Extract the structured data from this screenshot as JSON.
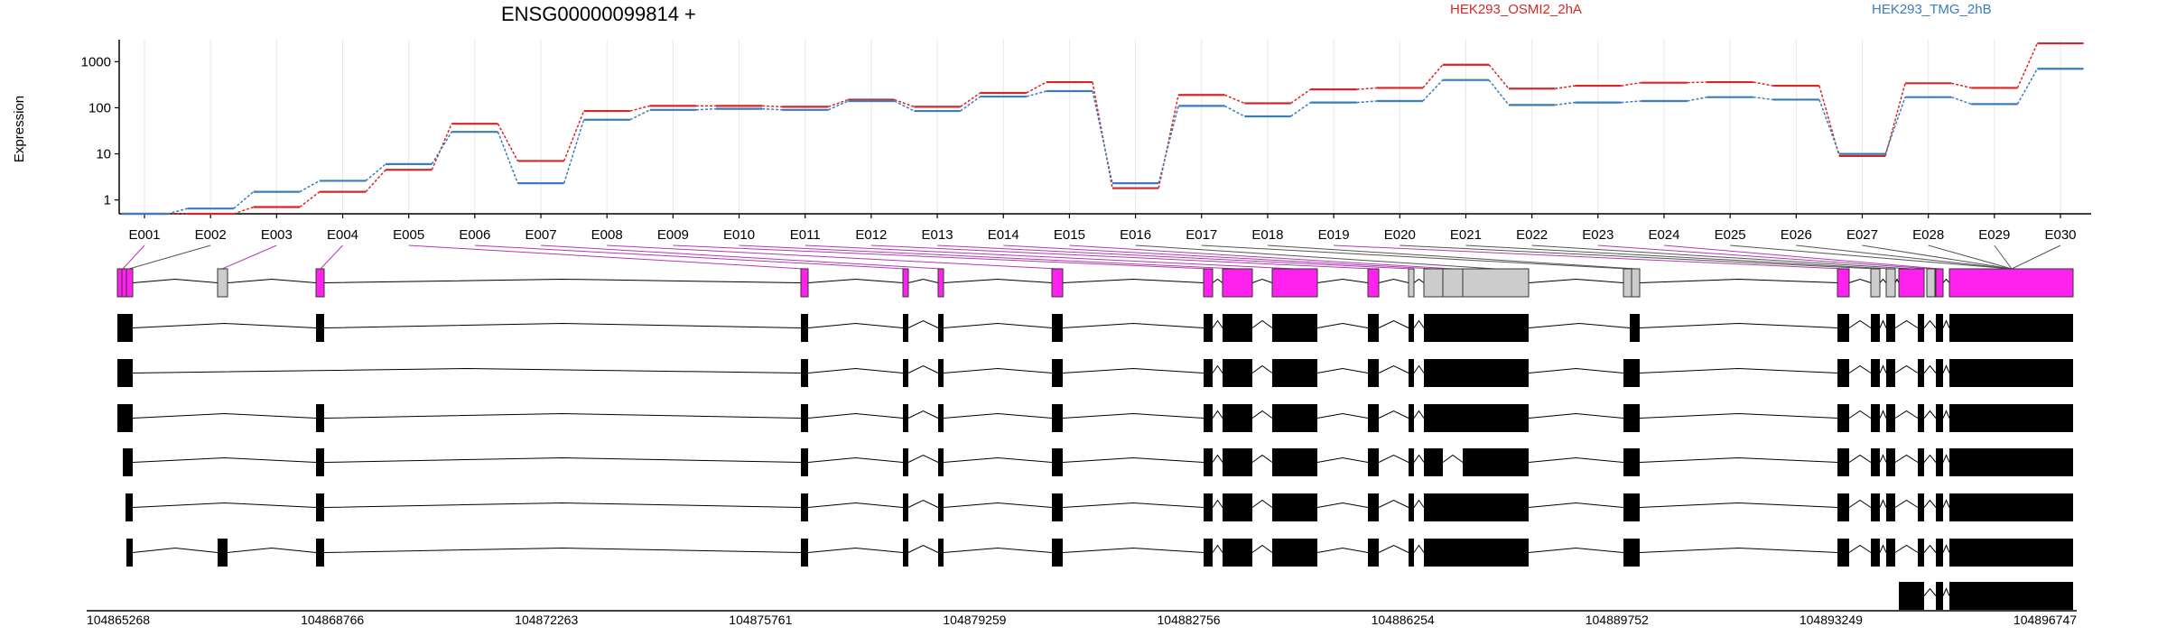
{
  "chart_data": {
    "type": "line",
    "title": "ENSG00000099814 +",
    "ylabel": "Expression",
    "xlabel": "",
    "y_scale": "log",
    "ylim": [
      0.5,
      3000
    ],
    "y_ticks": [
      1,
      10,
      100,
      1000
    ],
    "y_tick_labels": [
      "1",
      "10",
      "100",
      "1000"
    ],
    "grid": "vertical",
    "legend_placement": "top-right",
    "categories": [
      "E001",
      "E002",
      "E003",
      "E004",
      "E005",
      "E006",
      "E007",
      "E008",
      "E009",
      "E010",
      "E011",
      "E012",
      "E013",
      "E014",
      "E015",
      "E016",
      "E017",
      "E018",
      "E019",
      "E020",
      "E021",
      "E022",
      "E023",
      "E024",
      "E025",
      "E026",
      "E027",
      "E028",
      "E029",
      "E030"
    ],
    "series": [
      {
        "name": "HEK293_OSMI2_2hA",
        "color": "#d62728",
        "values": [
          0.5,
          0.5,
          0.7,
          1.5,
          4.5,
          45,
          7,
          85,
          110,
          110,
          105,
          150,
          105,
          210,
          360,
          1.8,
          190,
          125,
          250,
          270,
          860,
          260,
          300,
          350,
          360,
          300,
          9,
          340,
          270,
          2500
        ]
      },
      {
        "name": "HEK293_TMG_2hB",
        "color": "#3a7dba",
        "values": [
          0.5,
          0.65,
          1.5,
          2.6,
          6,
          30,
          2.3,
          55,
          90,
          95,
          90,
          140,
          85,
          175,
          230,
          2.3,
          110,
          65,
          130,
          140,
          400,
          115,
          130,
          140,
          170,
          150,
          10,
          170,
          120,
          700
        ]
      }
    ]
  },
  "gene_model": {
    "highlight_color": "#ff22ee",
    "neutral_color": "#cccccc",
    "transcript_color": "#000000",
    "coordinate_labels": [
      "104865268",
      "104868766",
      "104872263",
      "104875761",
      "104879259",
      "104882756",
      "104886254",
      "104889752",
      "104893249",
      "104896747"
    ]
  }
}
